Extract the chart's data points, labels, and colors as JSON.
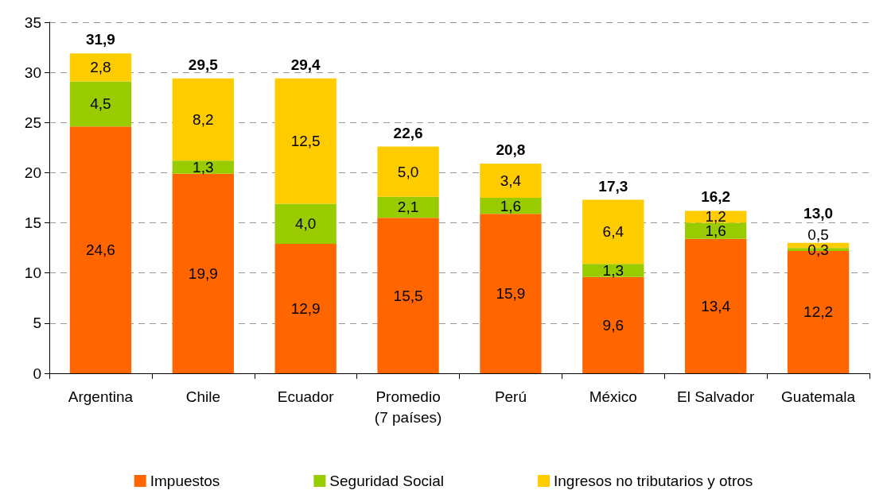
{
  "chart_data": {
    "type": "bar",
    "stacked": true,
    "categories": [
      "Argentina",
      "Chile",
      "Ecuador",
      "Promedio\n(7 países)",
      "Perú",
      "México",
      "El Salvador",
      "Guatemala"
    ],
    "series": [
      {
        "name": "Impuestos",
        "color": "#ff6600",
        "values": [
          24.6,
          19.9,
          12.9,
          15.5,
          15.9,
          9.6,
          13.4,
          12.2
        ],
        "value_labels": [
          "24,6",
          "19,9",
          "12,9",
          "15,5",
          "15,9",
          "9,6",
          "13,4",
          "12,2"
        ]
      },
      {
        "name": "Seguridad Social",
        "color": "#99cc00",
        "values": [
          4.5,
          1.3,
          4.0,
          2.1,
          1.6,
          1.3,
          1.6,
          0.3
        ],
        "value_labels": [
          "4,5",
          "1,3",
          "4,0",
          "2,1",
          "1,6",
          "1,3",
          "1,6",
          "0,3"
        ]
      },
      {
        "name": "Ingresos no tributarios y otros",
        "color": "#ffcc00",
        "values": [
          2.8,
          8.2,
          12.5,
          5.0,
          3.4,
          6.4,
          1.2,
          0.5
        ],
        "value_labels": [
          "2,8",
          "8,2",
          "12,5",
          "5,0",
          "3,4",
          "6,4",
          "1,2",
          "0,5"
        ]
      }
    ],
    "totals": [
      "31,9",
      "29,5",
      "29,4",
      "22,6",
      "20,8",
      "17,3",
      "16,2",
      "13,0"
    ],
    "ylim": [
      0,
      35
    ],
    "yticks": [
      0,
      5,
      10,
      15,
      20,
      25,
      30,
      35
    ],
    "grid": "y",
    "legend": "bottom"
  }
}
